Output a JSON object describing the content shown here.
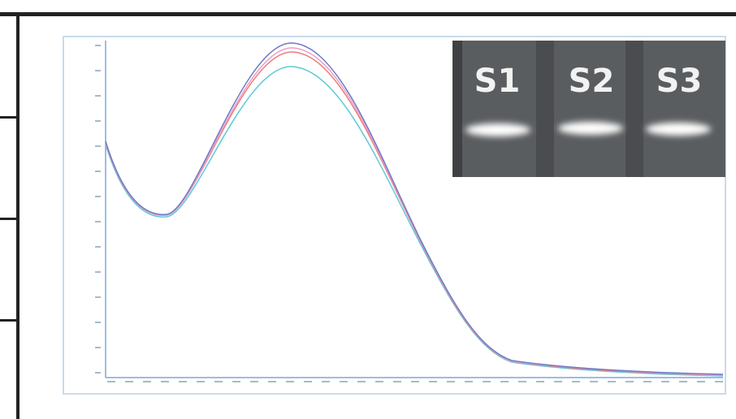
{
  "inset": {
    "labels": [
      "S1",
      "S2",
      "S3"
    ]
  }
}
